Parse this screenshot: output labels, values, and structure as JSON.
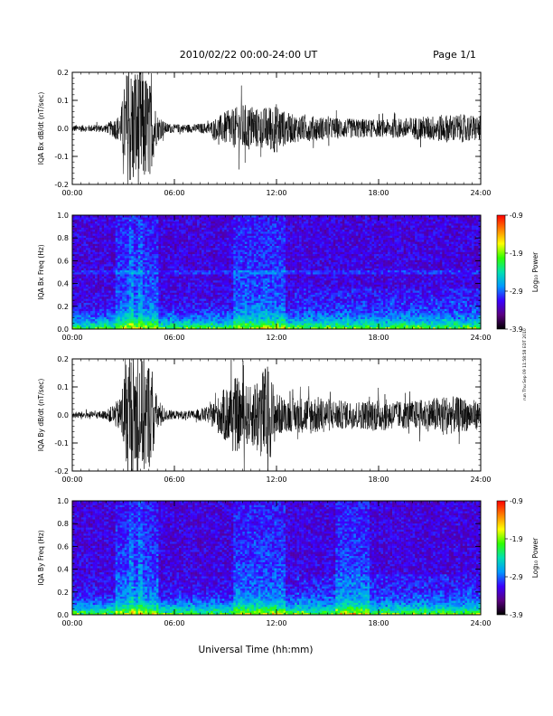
{
  "header": {
    "title": "2010/02/22  00:00-24:00 UT",
    "page": "Page 1/1"
  },
  "side_note": "run Thu Sep 09 11:58:58 EDT 2010",
  "chart_data": [
    {
      "type": "line",
      "title": "",
      "ylabel": "IQA Bx dB/dt (nT/sec)",
      "ylim": [
        -0.2,
        0.2
      ],
      "yticks": [
        -0.2,
        -0.1,
        0.0,
        0.1,
        0.2
      ],
      "ytick_labels": [
        "-0.2",
        "-0.1",
        "0.0",
        "0.1",
        "0.2"
      ],
      "xlim": [
        0,
        24
      ],
      "xticks": [
        0,
        6,
        12,
        18,
        24
      ],
      "xtick_labels": [
        "00:00",
        "06:00",
        "12:00",
        "18:00",
        "24:00"
      ],
      "envelope": {
        "x_hours": [
          0,
          1,
          2,
          2.8,
          3.2,
          3.6,
          4.0,
          4.5,
          5.0,
          5.5,
          6,
          7,
          8,
          8.5,
          9,
          9.5,
          10,
          10.5,
          11,
          11.5,
          12,
          12.5,
          13,
          14,
          15,
          16,
          17,
          18,
          19,
          20,
          21,
          22,
          23,
          24
        ],
        "amplitude": [
          0.012,
          0.012,
          0.015,
          0.05,
          0.21,
          0.22,
          0.22,
          0.18,
          0.05,
          0.02,
          0.015,
          0.015,
          0.02,
          0.04,
          0.06,
          0.07,
          0.09,
          0.08,
          0.07,
          0.08,
          0.09,
          0.06,
          0.05,
          0.045,
          0.04,
          0.035,
          0.035,
          0.03,
          0.035,
          0.04,
          0.045,
          0.05,
          0.05,
          0.045
        ]
      }
    },
    {
      "type": "heatmap",
      "title": "",
      "ylabel": "IQA Bx Freq (Hz)",
      "ylim": [
        0.0,
        1.0
      ],
      "yticks": [
        0.0,
        0.2,
        0.4,
        0.6,
        0.8,
        1.0
      ],
      "ytick_labels": [
        "0.0",
        "0.2",
        "0.4",
        "0.6",
        "0.8",
        "1.0"
      ],
      "xlim": [
        0,
        24
      ],
      "xticks": [
        0,
        6,
        12,
        18,
        24
      ],
      "xtick_labels": [
        "00:00",
        "06:00",
        "12:00",
        "18:00",
        "24:00"
      ],
      "colorbar": {
        "label": "Log₁₀ Power",
        "range": [
          -3.9,
          -0.9
        ],
        "ticks": [
          -0.9,
          -1.9,
          -2.9,
          -3.9
        ],
        "tick_labels": [
          "-0.9",
          "-1.9",
          "-2.9",
          "-3.9"
        ],
        "colors": [
          "#000000",
          "#5a0080",
          "#3a00ff",
          "#0099ff",
          "#00e0b0",
          "#30ff00",
          "#ffff00",
          "#ff8000",
          "#ff0000"
        ]
      },
      "features": {
        "band_freq_hz": 0.5,
        "bursts_hours": [
          3.5,
          4.0
        ],
        "low_freq_activity_hours": [
          [
            2.5,
            5.0
          ],
          [
            9.5,
            12.5
          ]
        ]
      }
    },
    {
      "type": "line",
      "title": "",
      "ylabel": "IQA By dB/dt (nT/sec)",
      "ylim": [
        -0.2,
        0.2
      ],
      "yticks": [
        -0.2,
        -0.1,
        0.0,
        0.1,
        0.2
      ],
      "ytick_labels": [
        "-0.2",
        "-0.1",
        "0.0",
        "0.1",
        "0.2"
      ],
      "xlim": [
        0,
        24
      ],
      "xticks": [
        0,
        6,
        12,
        18,
        24
      ],
      "xtick_labels": [
        "00:00",
        "06:00",
        "12:00",
        "18:00",
        "24:00"
      ],
      "xlabel": "Universal Time (hh:mm)",
      "envelope": {
        "x_hours": [
          0,
          1,
          2,
          2.8,
          3.2,
          3.6,
          4.0,
          4.5,
          5.0,
          5.5,
          6,
          7,
          8,
          8.5,
          9,
          9.5,
          10,
          10.5,
          11,
          11.5,
          12,
          12.5,
          13,
          14,
          15,
          16,
          17,
          18,
          19,
          20,
          21,
          22,
          23,
          24
        ],
        "amplitude": [
          0.012,
          0.012,
          0.015,
          0.06,
          0.21,
          0.22,
          0.22,
          0.2,
          0.06,
          0.02,
          0.015,
          0.015,
          0.03,
          0.06,
          0.1,
          0.14,
          0.12,
          0.1,
          0.16,
          0.18,
          0.08,
          0.06,
          0.06,
          0.07,
          0.06,
          0.05,
          0.05,
          0.06,
          0.05,
          0.05,
          0.06,
          0.07,
          0.06,
          0.05
        ]
      }
    },
    {
      "type": "heatmap",
      "title": "",
      "ylabel": "IQA By Freq (Hz)",
      "ylim": [
        0.0,
        1.0
      ],
      "yticks": [
        0.0,
        0.2,
        0.4,
        0.6,
        0.8,
        1.0
      ],
      "ytick_labels": [
        "0.0",
        "0.2",
        "0.4",
        "0.6",
        "0.8",
        "1.0"
      ],
      "xlim": [
        0,
        24
      ],
      "xticks": [
        0,
        6,
        12,
        18,
        24
      ],
      "xtick_labels": [
        "00:00",
        "06:00",
        "12:00",
        "18:00",
        "24:00"
      ],
      "colorbar": {
        "label": "Log₁₀ Power",
        "range": [
          -3.9,
          -0.9
        ],
        "ticks": [
          -0.9,
          -1.9,
          -2.9,
          -3.9
        ],
        "tick_labels": [
          "-0.9",
          "-1.9",
          "-2.9",
          "-3.9"
        ],
        "colors": [
          "#000000",
          "#5a0080",
          "#3a00ff",
          "#0099ff",
          "#00e0b0",
          "#30ff00",
          "#ffff00",
          "#ff8000",
          "#ff0000"
        ]
      },
      "features": {
        "bursts_hours": [
          3.5,
          4.0
        ],
        "low_freq_activity_hours": [
          [
            2.5,
            5.0
          ],
          [
            9.5,
            12.5
          ],
          [
            15.5,
            17.5
          ]
        ]
      }
    }
  ],
  "xlabel": "Universal Time (hh:mm)"
}
